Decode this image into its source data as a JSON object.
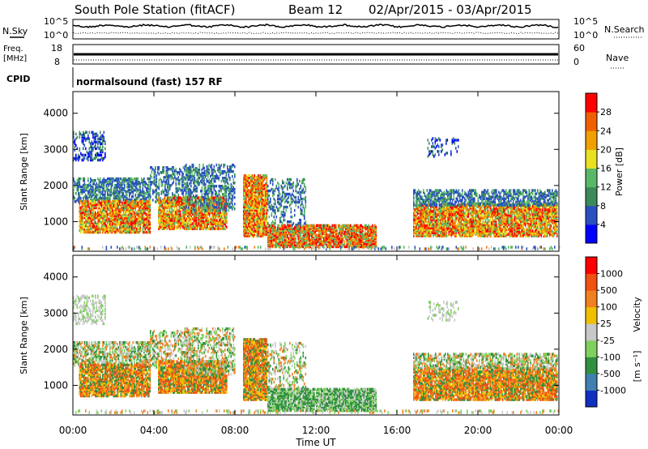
{
  "header": {
    "title": "South Pole Station (fitACF)",
    "beam": "Beam 12",
    "date_range": "02/Apr/2015 - 03/Apr/2015"
  },
  "noise_panel": {
    "left_label": "N.Sky",
    "right_label": "N.Search",
    "left_ticks": [
      "10^5",
      "10^0"
    ],
    "right_ticks": [
      "10^5",
      "10^0"
    ]
  },
  "freq_panel": {
    "left_label_1": "Freq.",
    "left_label_2": "[MHz]",
    "right_label": "Nave",
    "left_ticks": [
      "18",
      "8"
    ],
    "right_ticks": [
      "60",
      "0"
    ]
  },
  "cpid_panel": {
    "label": "CPID",
    "text": "normalsound (fast) 157 RF"
  },
  "chart_data": [
    {
      "type": "heatmap",
      "title": "",
      "xlabel": "Time UT",
      "ylabel": "Slant Range [km]",
      "xticks": [
        "00:00",
        "04:00",
        "08:00",
        "12:00",
        "16:00",
        "20:00",
        "00:00"
      ],
      "yticks": [
        1000,
        2000,
        3000,
        4000
      ],
      "xlim_hours": [
        0,
        24
      ],
      "ylim": [
        180,
        4600
      ],
      "colorbar": {
        "label": "Power [dB]",
        "ticks": [
          "4",
          "8",
          "12",
          "16",
          "20",
          "24",
          "28"
        ],
        "colors": [
          "#0000ff",
          "#2850c0",
          "#3a8a5a",
          "#58b868",
          "#e8e020",
          "#f0a000",
          "#f06000",
          "#ff0000"
        ]
      },
      "grid": false
    },
    {
      "type": "heatmap",
      "title": "",
      "xlabel": "Time UT",
      "ylabel": "Slant Range [km]",
      "xticks": [
        "00:00",
        "04:00",
        "08:00",
        "12:00",
        "16:00",
        "20:00",
        "00:00"
      ],
      "yticks": [
        1000,
        2000,
        3000,
        4000
      ],
      "xlim_hours": [
        0,
        24
      ],
      "ylim": [
        180,
        4600
      ],
      "colorbar": {
        "label_main": "Velocity",
        "label_units": "[m s⁻¹]",
        "ticks": [
          "1000",
          "500",
          "100",
          "25",
          "-25",
          "-100",
          "-500",
          "-1000"
        ],
        "colors": [
          "#1030c0",
          "#4080b0",
          "#309040",
          "#80d060",
          "#c8c8c8",
          "#f0c000",
          "#f08020",
          "#f05010",
          "#ff0000"
        ]
      },
      "grid": false
    }
  ],
  "axes": {
    "xlabel": "Time UT",
    "xticks": [
      "00:00",
      "04:00",
      "08:00",
      "12:00",
      "16:00",
      "20:00",
      "00:00"
    ]
  }
}
